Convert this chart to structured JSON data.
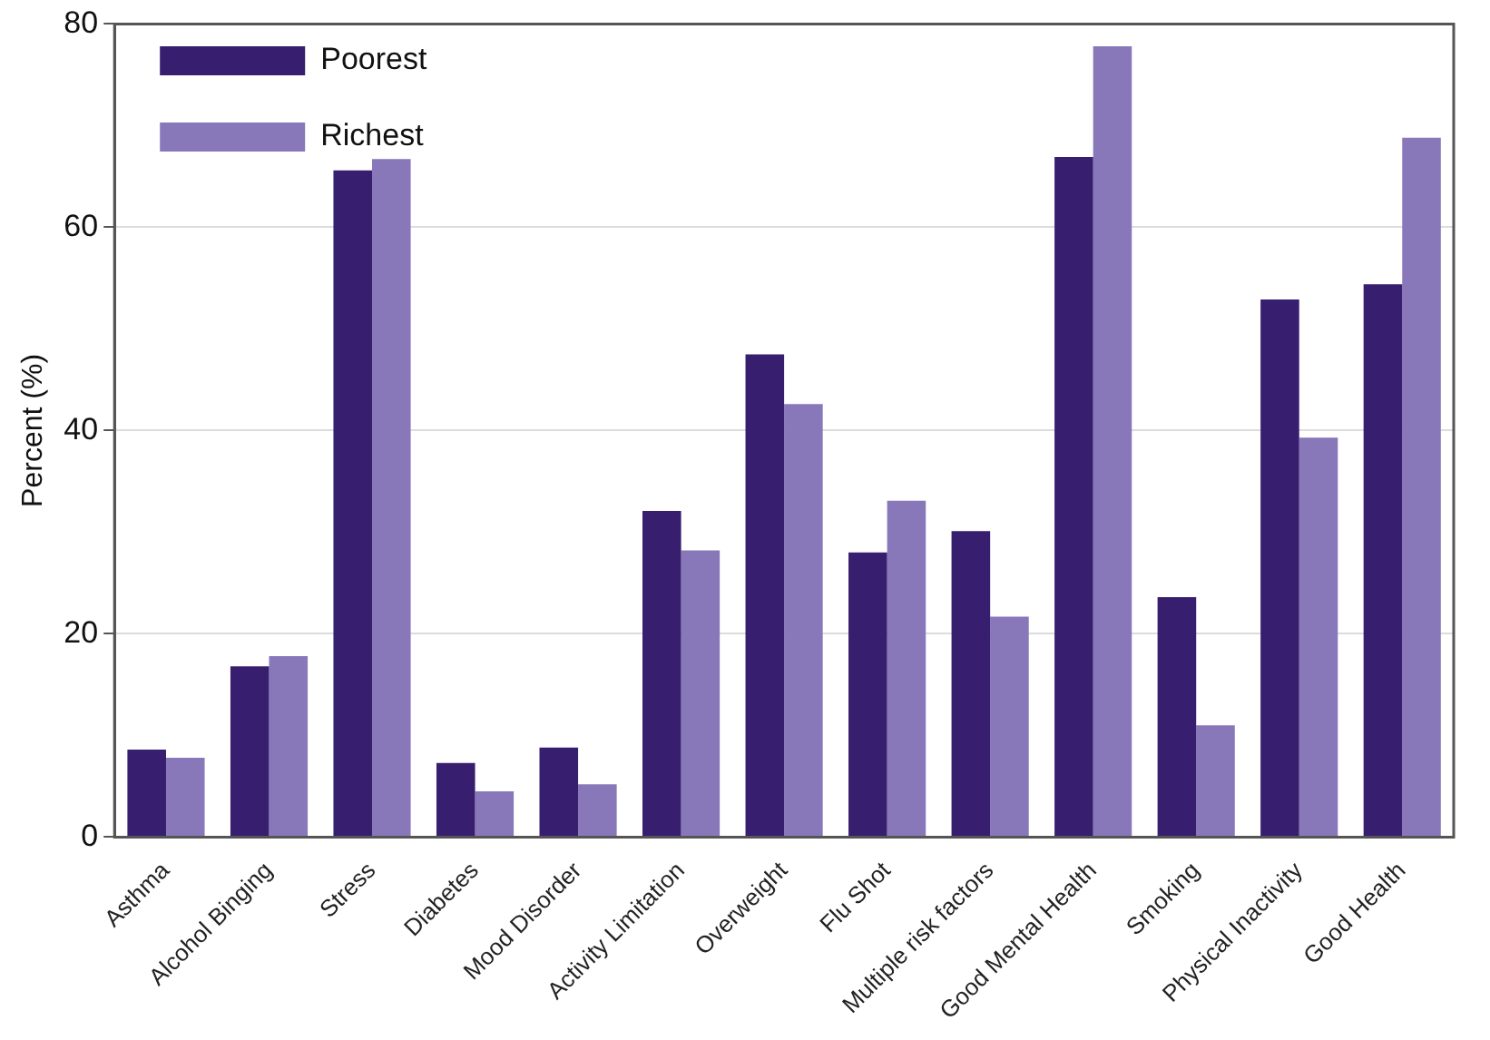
{
  "chart_data": {
    "type": "bar",
    "ylabel": "Percent (%)",
    "categories": [
      "Asthma",
      "Alcohol Binging",
      "Stress",
      "Diabetes",
      "Mood Disorder",
      "Activity Limitation",
      "Overweight",
      "Flu Shot",
      "Multiple risk factors",
      "Good Mental Health",
      "Smoking",
      "Physical Inactivity",
      "Good Health"
    ],
    "series": [
      {
        "name": "Poorest",
        "color": "#371e6e",
        "values": [
          8.6,
          16.8,
          65.6,
          7.3,
          8.8,
          32.1,
          47.5,
          28.0,
          30.1,
          66.9,
          23.6,
          52.9,
          54.4
        ]
      },
      {
        "name": "Richest",
        "color": "#8878b9",
        "values": [
          7.8,
          17.8,
          66.7,
          4.5,
          5.2,
          28.2,
          42.6,
          33.1,
          21.7,
          77.8,
          11.0,
          39.3,
          68.8
        ]
      }
    ],
    "ylim": [
      0,
      80
    ],
    "yticks": [
      0,
      20,
      40,
      60,
      80
    ],
    "grid": "y",
    "legend": "top left"
  }
}
